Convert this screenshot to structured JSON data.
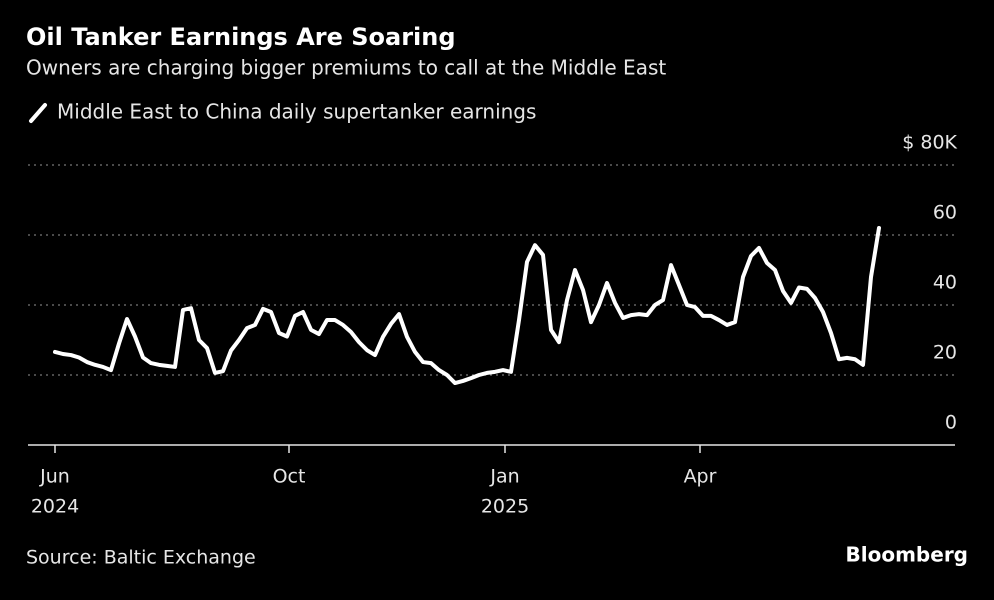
{
  "chart_data": {
    "type": "line",
    "title": "Oil Tanker Earnings Are Soaring",
    "subtitle": "Owners are charging bigger premiums to call at the Middle East",
    "source": "Source: Baltic Exchange",
    "brand": "Bloomberg",
    "series": [
      {
        "name": "Middle East to China daily supertanker earnings",
        "color": "#ffffff",
        "values": [
          26.6,
          26,
          25.7,
          25,
          23.7,
          22.9,
          22.3,
          21.4,
          29,
          36,
          31,
          25,
          23.4,
          22.9,
          22.6,
          22.3,
          38.6,
          39.1,
          30,
          27.7,
          20.6,
          21.1,
          27,
          30,
          33.4,
          34.3,
          38.9,
          38,
          32,
          31,
          36.9,
          38,
          32.9,
          31.7,
          35.7,
          35.7,
          34.3,
          32.3,
          29.4,
          27.1,
          25.7,
          30.9,
          34.6,
          37.4,
          30.9,
          26.6,
          23.7,
          23.4,
          21.4,
          20,
          17.7,
          18.3,
          19.1,
          20,
          20.6,
          20.9,
          21.4,
          20.9,
          35.7,
          52.3,
          57.1,
          54.3,
          32.9,
          29.4,
          41.4,
          50,
          44.3,
          35.1,
          40,
          46.3,
          40.6,
          36.3,
          37.1,
          37.4,
          37.1,
          40,
          41.4,
          51.4,
          45.7,
          40,
          39.4,
          36.9,
          36.9,
          35.7,
          34.3,
          35.1,
          48,
          54,
          56.3,
          52,
          50,
          44,
          40.6,
          45,
          44.6,
          42,
          38,
          32,
          24.5,
          24.9,
          24.5,
          22.9,
          48,
          62
        ]
      }
    ],
    "xlim": [
      -3.375,
      112.5
    ],
    "xticks": [
      {
        "value": 0,
        "label": "Jun",
        "year": "2024"
      },
      {
        "value": 29.25,
        "label": "Oct"
      },
      {
        "value": 56.25,
        "label": "Jan",
        "year": "2025"
      },
      {
        "value": 80.625,
        "label": "Apr"
      }
    ],
    "ylim": [
      0,
      80
    ],
    "yticks": [
      0,
      20,
      40,
      60,
      {
        "value": 80,
        "label": "$ 80K"
      }
    ],
    "grid": true
  }
}
